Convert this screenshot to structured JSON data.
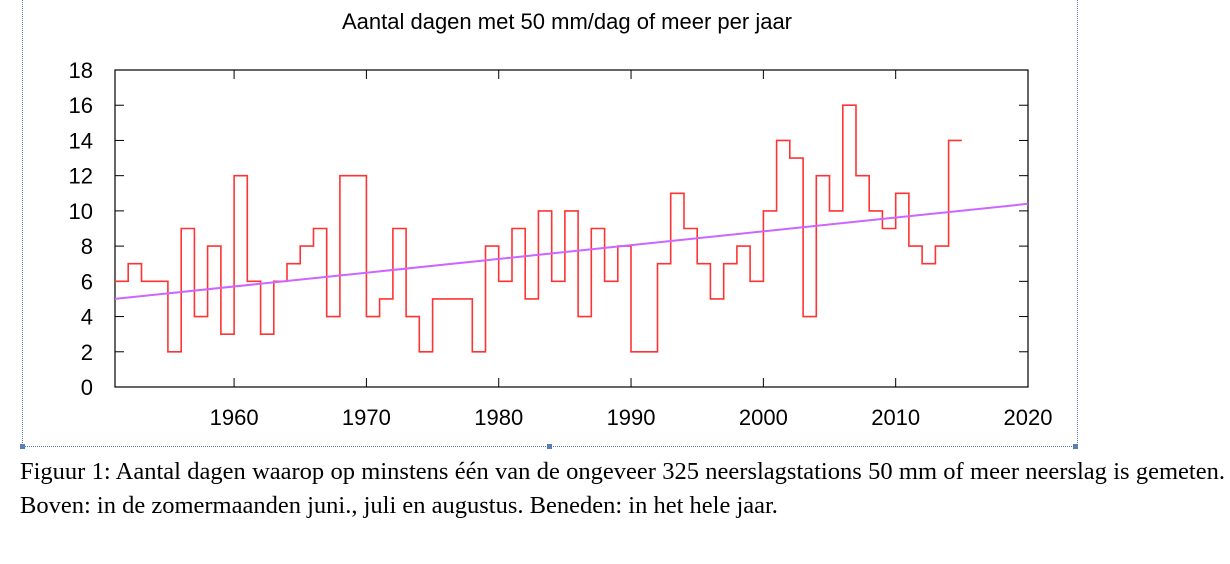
{
  "chart_data": {
    "type": "line",
    "title": "Aantal dagen met 50 mm/dag of meer per jaar",
    "xlabel": "",
    "ylabel": "",
    "xlim": [
      1951,
      2020
    ],
    "ylim": [
      0,
      18
    ],
    "x_ticks": [
      1960,
      1970,
      1980,
      1990,
      2000,
      2010,
      2020
    ],
    "y_ticks": [
      0,
      2,
      4,
      6,
      8,
      10,
      12,
      14,
      16,
      18
    ],
    "grid": false,
    "series": [
      {
        "style": "step",
        "color": "#ff3333",
        "x": [
          1951,
          1952,
          1953,
          1954,
          1955,
          1956,
          1957,
          1958,
          1959,
          1960,
          1961,
          1962,
          1963,
          1964,
          1965,
          1966,
          1967,
          1968,
          1969,
          1970,
          1971,
          1972,
          1973,
          1974,
          1975,
          1976,
          1977,
          1978,
          1979,
          1980,
          1981,
          1982,
          1983,
          1984,
          1985,
          1986,
          1987,
          1988,
          1989,
          1990,
          1991,
          1992,
          1993,
          1994,
          1995,
          1996,
          1997,
          1998,
          1999,
          2000,
          2001,
          2002,
          2003,
          2004,
          2005,
          2006,
          2007,
          2008,
          2009,
          2010,
          2011,
          2012,
          2013,
          2014
        ],
        "values": [
          6,
          7,
          6,
          6,
          2,
          9,
          4,
          8,
          3,
          12,
          6,
          3,
          6,
          7,
          8,
          9,
          4,
          12,
          12,
          4,
          5,
          9,
          4,
          2,
          5,
          5,
          5,
          2,
          8,
          6,
          9,
          5,
          10,
          6,
          10,
          4,
          9,
          6,
          8,
          2,
          2,
          7,
          11,
          9,
          7,
          5,
          7,
          8,
          6,
          10,
          14,
          13,
          4,
          12,
          10,
          16,
          12,
          10,
          9,
          11,
          8,
          7,
          8,
          14
        ]
      },
      {
        "style": "line",
        "color": "#cc66ff",
        "x": [
          1951,
          2020
        ],
        "values": [
          5.0,
          10.4
        ]
      }
    ]
  },
  "caption": "Figuur 1: Aantal dagen waarop op minstens één van de ongeveer 325 neerslagstations 50 mm of meer neerslag is gemeten. Boven: in de zomermaanden juni., juli en augustus. Beneden: in het hele jaar."
}
